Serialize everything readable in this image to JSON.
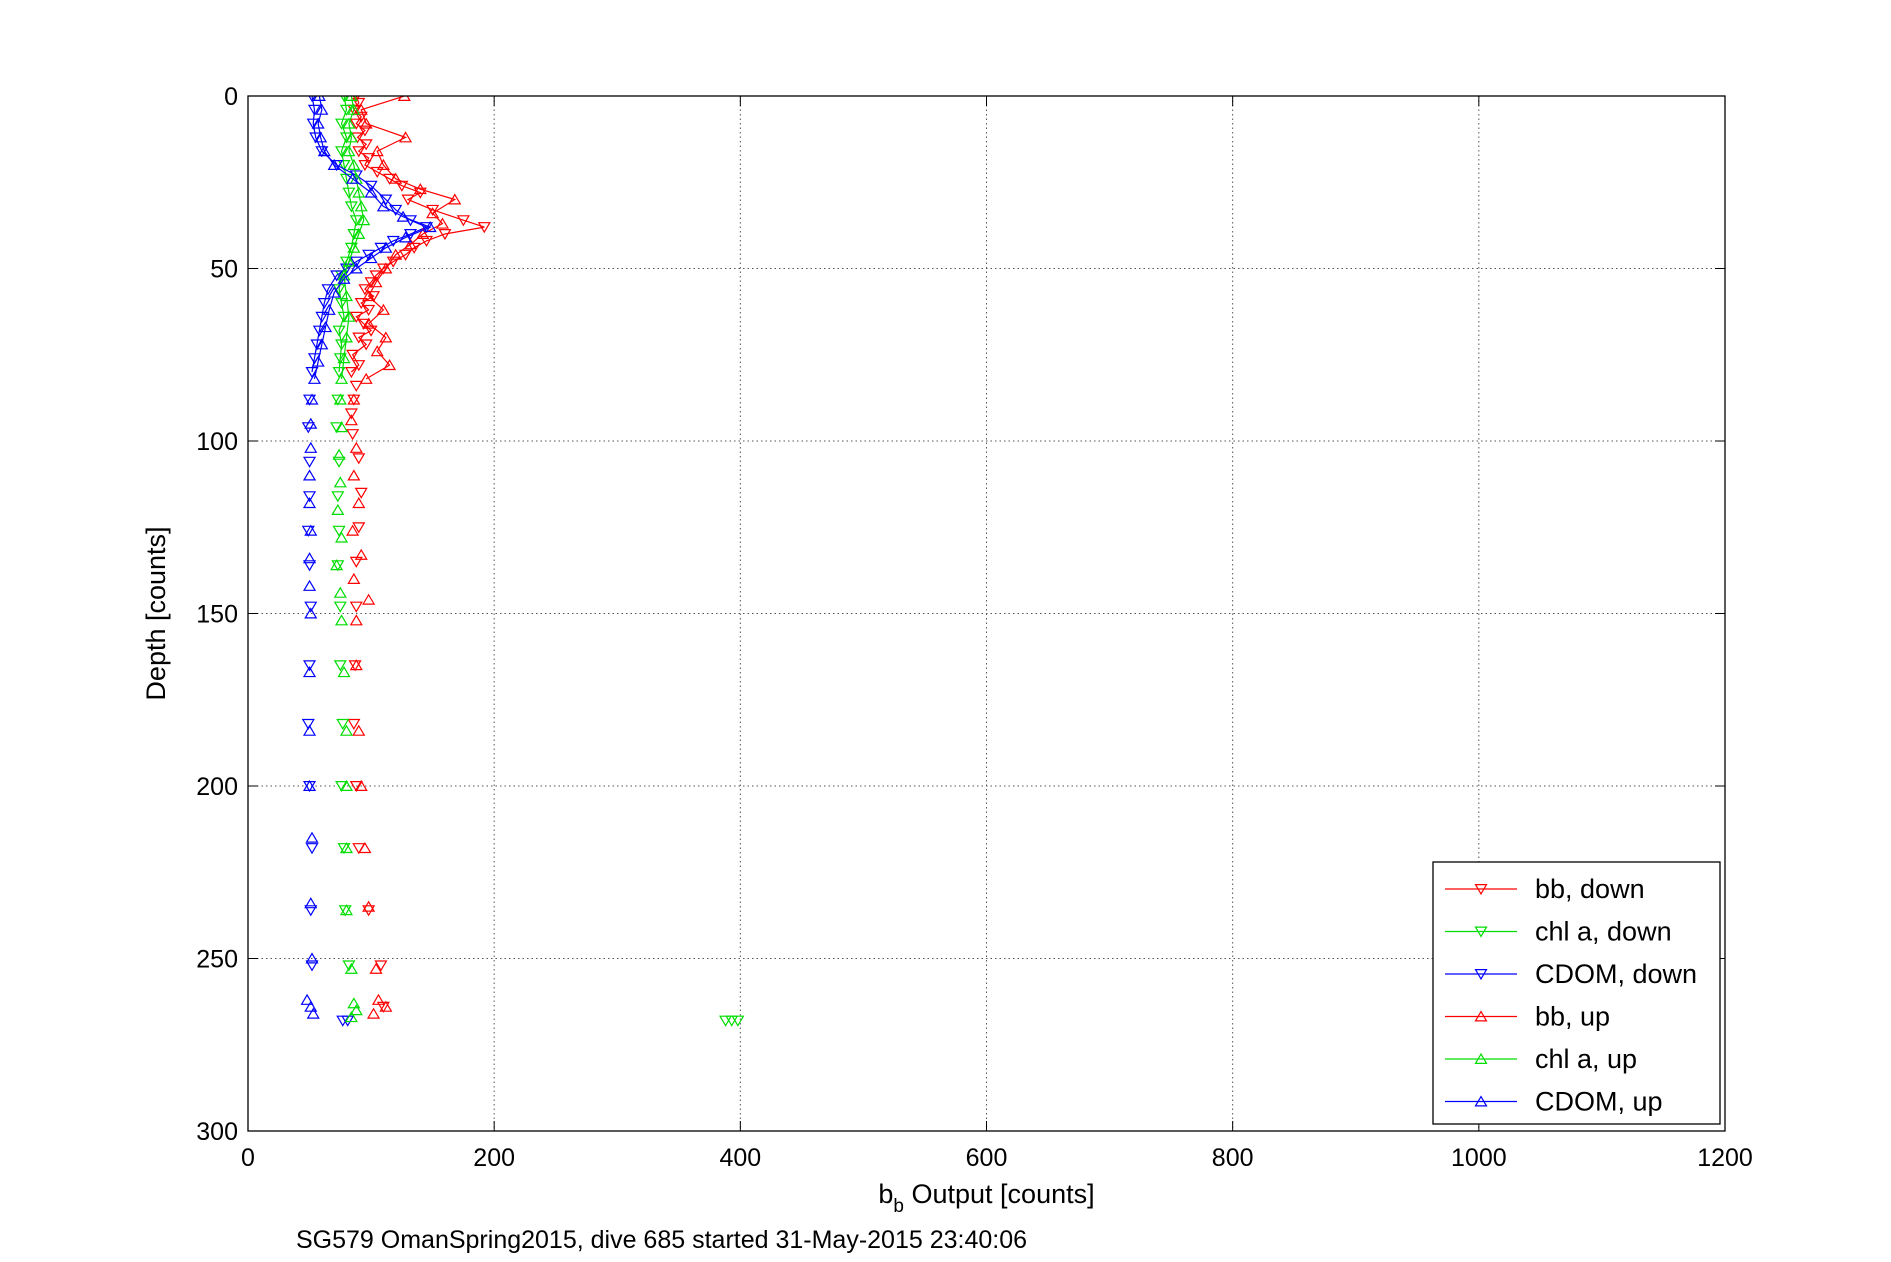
{
  "chart_data": {
    "type": "scatter",
    "title": "",
    "xlabel_main": "b",
    "xlabel_sub": "b",
    "xlabel_rest": " Output [counts]",
    "ylabel": "Depth [counts]",
    "caption": "SG579 OmanSpring2015, dive 685 started 31-May-2015 23:40:06",
    "xlim": [
      0,
      1200
    ],
    "ylim": [
      0,
      300
    ],
    "y_reversed": true,
    "grid": true,
    "grid_style": "dotted",
    "legend_position": "bottom-right",
    "x_ticks": [
      "0",
      "200",
      "400",
      "600",
      "800",
      "1000",
      "1200"
    ],
    "y_ticks": [
      "0",
      "50",
      "100",
      "150",
      "200",
      "250",
      "300"
    ],
    "colors": {
      "bb": "#ff0000",
      "chl": "#00dd00",
      "cdom": "#0000ff"
    },
    "series": [
      {
        "name": "bb, down",
        "color": "#ff0000",
        "marker": "triangle-down",
        "line": true,
        "points": [
          [
            88,
            0
          ],
          [
            90,
            2
          ],
          [
            86,
            4
          ],
          [
            92,
            6
          ],
          [
            88,
            8
          ],
          [
            95,
            10
          ],
          [
            89,
            12
          ],
          [
            96,
            14
          ],
          [
            90,
            16
          ],
          [
            98,
            18
          ],
          [
            95,
            20
          ],
          [
            105,
            22
          ],
          [
            115,
            24
          ],
          [
            125,
            26
          ],
          [
            140,
            28
          ],
          [
            130,
            30
          ],
          [
            150,
            33
          ],
          [
            175,
            36
          ],
          [
            192,
            38
          ],
          [
            160,
            40
          ],
          [
            145,
            42
          ],
          [
            135,
            44
          ],
          [
            128,
            46
          ],
          [
            118,
            48
          ],
          [
            110,
            50
          ],
          [
            104,
            52
          ],
          [
            100,
            54
          ],
          [
            95,
            56
          ],
          [
            102,
            58
          ],
          [
            92,
            60
          ],
          [
            98,
            62
          ],
          [
            88,
            64
          ],
          [
            94,
            66
          ],
          [
            100,
            68
          ],
          [
            90,
            70
          ],
          [
            96,
            72
          ],
          [
            85,
            75
          ],
          [
            90,
            78
          ],
          [
            84,
            80
          ],
          [
            88,
            84
          ],
          [
            86,
            88
          ],
          [
            84,
            92
          ],
          [
            85,
            98
          ],
          [
            90,
            105
          ],
          [
            92,
            115
          ],
          [
            90,
            125
          ],
          [
            88,
            135
          ],
          [
            88,
            148
          ],
          [
            87,
            165
          ],
          [
            86,
            182
          ],
          [
            88,
            200
          ],
          [
            90,
            218
          ],
          [
            98,
            236
          ],
          [
            108,
            252
          ],
          [
            110,
            264
          ]
        ]
      },
      {
        "name": "chl a, down",
        "color": "#00dd00",
        "marker": "triangle-down",
        "line": true,
        "points": [
          [
            78,
            0
          ],
          [
            80,
            4
          ],
          [
            76,
            8
          ],
          [
            80,
            12
          ],
          [
            76,
            16
          ],
          [
            78,
            20
          ],
          [
            80,
            24
          ],
          [
            82,
            28
          ],
          [
            84,
            32
          ],
          [
            88,
            36
          ],
          [
            86,
            40
          ],
          [
            84,
            44
          ],
          [
            80,
            48
          ],
          [
            76,
            52
          ],
          [
            74,
            56
          ],
          [
            76,
            60
          ],
          [
            78,
            64
          ],
          [
            74,
            68
          ],
          [
            76,
            72
          ],
          [
            75,
            76
          ],
          [
            74,
            80
          ],
          [
            73,
            88
          ],
          [
            72,
            96
          ],
          [
            74,
            106
          ],
          [
            73,
            116
          ],
          [
            74,
            126
          ],
          [
            73,
            136
          ],
          [
            75,
            148
          ],
          [
            75,
            165
          ],
          [
            77,
            182
          ],
          [
            76,
            200
          ],
          [
            78,
            218
          ],
          [
            79,
            236
          ],
          [
            82,
            252
          ],
          [
            388,
            268
          ],
          [
            393,
            268
          ],
          [
            398,
            268
          ]
        ]
      },
      {
        "name": "CDOM, down",
        "color": "#0000ff",
        "marker": "triangle-down",
        "line": true,
        "points": [
          [
            52,
            0
          ],
          [
            54,
            4
          ],
          [
            53,
            8
          ],
          [
            55,
            12
          ],
          [
            60,
            16
          ],
          [
            72,
            20
          ],
          [
            88,
            23
          ],
          [
            100,
            26
          ],
          [
            112,
            30
          ],
          [
            120,
            33
          ],
          [
            132,
            36
          ],
          [
            145,
            38
          ],
          [
            132,
            40
          ],
          [
            118,
            42
          ],
          [
            108,
            44
          ],
          [
            98,
            46
          ],
          [
            88,
            48
          ],
          [
            80,
            50
          ],
          [
            72,
            52
          ],
          [
            65,
            56
          ],
          [
            62,
            60
          ],
          [
            60,
            64
          ],
          [
            58,
            68
          ],
          [
            56,
            72
          ],
          [
            54,
            76
          ],
          [
            52,
            80
          ],
          [
            50,
            88
          ],
          [
            49,
            96
          ],
          [
            50,
            106
          ],
          [
            50,
            116
          ],
          [
            49,
            126
          ],
          [
            50,
            136
          ],
          [
            51,
            148
          ],
          [
            50,
            165
          ],
          [
            49,
            182
          ],
          [
            50,
            200
          ],
          [
            52,
            218
          ],
          [
            51,
            236
          ],
          [
            52,
            252
          ],
          [
            77,
            268
          ],
          [
            81,
            268
          ]
        ]
      },
      {
        "name": "bb, up",
        "color": "#ff0000",
        "marker": "triangle-up",
        "line": true,
        "points": [
          [
            127,
            0
          ],
          [
            92,
            4
          ],
          [
            96,
            8
          ],
          [
            128,
            12
          ],
          [
            105,
            16
          ],
          [
            110,
            20
          ],
          [
            120,
            24
          ],
          [
            140,
            27
          ],
          [
            168,
            30
          ],
          [
            150,
            34
          ],
          [
            158,
            37
          ],
          [
            142,
            40
          ],
          [
            132,
            43
          ],
          [
            120,
            46
          ],
          [
            112,
            50
          ],
          [
            104,
            54
          ],
          [
            98,
            58
          ],
          [
            110,
            62
          ],
          [
            98,
            66
          ],
          [
            112,
            70
          ],
          [
            105,
            74
          ],
          [
            115,
            78
          ],
          [
            96,
            82
          ],
          [
            86,
            88
          ],
          [
            84,
            94
          ],
          [
            88,
            102
          ],
          [
            86,
            110
          ],
          [
            90,
            118
          ],
          [
            85,
            126
          ],
          [
            92,
            133
          ],
          [
            86,
            140
          ],
          [
            98,
            146
          ],
          [
            88,
            152
          ],
          [
            88,
            165
          ],
          [
            90,
            184
          ],
          [
            92,
            200
          ],
          [
            95,
            218
          ],
          [
            98,
            235
          ],
          [
            104,
            253
          ],
          [
            106,
            262
          ],
          [
            112,
            264
          ],
          [
            102,
            266
          ]
        ]
      },
      {
        "name": "chl a, up",
        "color": "#00dd00",
        "marker": "triangle-up",
        "line": true,
        "points": [
          [
            84,
            0
          ],
          [
            86,
            4
          ],
          [
            82,
            8
          ],
          [
            84,
            12
          ],
          [
            82,
            16
          ],
          [
            86,
            20
          ],
          [
            88,
            24
          ],
          [
            90,
            28
          ],
          [
            92,
            32
          ],
          [
            94,
            36
          ],
          [
            90,
            40
          ],
          [
            86,
            44
          ],
          [
            82,
            48
          ],
          [
            78,
            52
          ],
          [
            80,
            58
          ],
          [
            82,
            64
          ],
          [
            80,
            70
          ],
          [
            78,
            76
          ],
          [
            76,
            82
          ],
          [
            75,
            88
          ],
          [
            76,
            96
          ],
          [
            74,
            104
          ],
          [
            75,
            112
          ],
          [
            73,
            120
          ],
          [
            76,
            128
          ],
          [
            72,
            136
          ],
          [
            75,
            144
          ],
          [
            76,
            152
          ],
          [
            78,
            167
          ],
          [
            80,
            184
          ],
          [
            80,
            200
          ],
          [
            80,
            218
          ],
          [
            80,
            236
          ],
          [
            84,
            253
          ],
          [
            86,
            263
          ],
          [
            88,
            265
          ],
          [
            84,
            267
          ]
        ]
      },
      {
        "name": "CDOM, up",
        "color": "#0000ff",
        "marker": "triangle-up",
        "line": true,
        "points": [
          [
            58,
            0
          ],
          [
            60,
            4
          ],
          [
            57,
            8
          ],
          [
            59,
            12
          ],
          [
            62,
            16
          ],
          [
            70,
            20
          ],
          [
            85,
            24
          ],
          [
            100,
            28
          ],
          [
            110,
            32
          ],
          [
            126,
            35
          ],
          [
            148,
            38
          ],
          [
            128,
            41
          ],
          [
            112,
            44
          ],
          [
            100,
            47
          ],
          [
            88,
            50
          ],
          [
            78,
            53
          ],
          [
            70,
            57
          ],
          [
            66,
            62
          ],
          [
            63,
            67
          ],
          [
            60,
            72
          ],
          [
            57,
            77
          ],
          [
            54,
            82
          ],
          [
            52,
            88
          ],
          [
            51,
            95
          ],
          [
            51,
            102
          ],
          [
            50,
            110
          ],
          [
            50,
            118
          ],
          [
            51,
            126
          ],
          [
            50,
            134
          ],
          [
            50,
            142
          ],
          [
            51,
            150
          ],
          [
            50,
            167
          ],
          [
            50,
            184
          ],
          [
            50,
            200
          ],
          [
            52,
            215
          ],
          [
            51,
            234
          ],
          [
            52,
            250
          ],
          [
            48,
            262
          ],
          [
            51,
            264
          ],
          [
            53,
            266
          ]
        ]
      }
    ]
  }
}
